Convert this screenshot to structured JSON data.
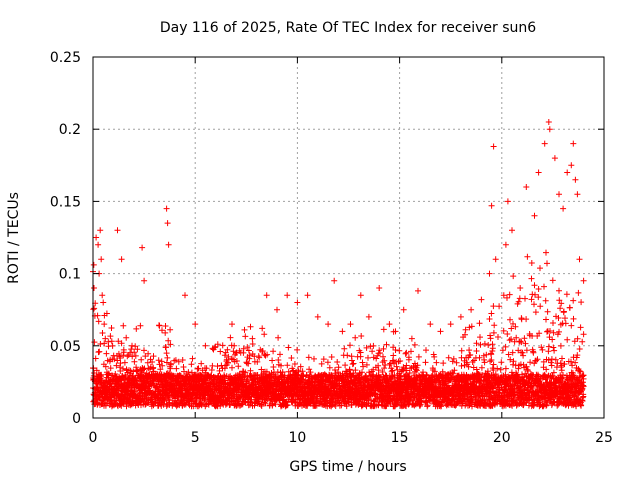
{
  "chart_data": {
    "type": "scatter",
    "title": "Day 116 of 2025, Rate Of TEC Index for receiver sun6",
    "xlabel": "GPS time / hours",
    "ylabel": "ROTI / TECUs",
    "xlim": [
      0,
      25
    ],
    "ylim": [
      0,
      0.25
    ],
    "xticks": [
      0,
      5,
      10,
      15,
      20,
      25
    ],
    "xtick_labels": [
      "0",
      "5",
      "10",
      "15",
      "20",
      "25"
    ],
    "yticks": [
      0,
      0.05,
      0.1,
      0.15,
      0.2,
      0.25
    ],
    "ytick_labels": [
      "0",
      "0.05",
      "0.1",
      "0.15",
      "0.2",
      "0.25"
    ],
    "grid": true,
    "marker": "+",
    "series": [
      {
        "name": "ROTI",
        "color": "#ff0000",
        "x": [
          0.05,
          0.15,
          0.25,
          0.3,
          0.35,
          0.4,
          0.45,
          0.5,
          0.55,
          0.6,
          1.2,
          1.4,
          2.4,
          2.5,
          3.6,
          3.65,
          3.7,
          4.5,
          5.0,
          5.5,
          6.8,
          7.0,
          7.8,
          8.5,
          9.0,
          9.5,
          10.0,
          10.5,
          11.0,
          11.5,
          11.8,
          12.2,
          12.6,
          13.1,
          13.5,
          14.0,
          14.5,
          14.8,
          15.2,
          15.6,
          15.9,
          16.5,
          17.0,
          17.5,
          18.0,
          18.5,
          19.0,
          19.4,
          19.5,
          19.6,
          19.7,
          20.1,
          20.2,
          20.3,
          20.5,
          20.9,
          21.2,
          21.6,
          21.8,
          22.1,
          22.3,
          22.35,
          22.6,
          22.8,
          23.0,
          23.2,
          23.4,
          23.5,
          23.6,
          23.7,
          23.8,
          24.0
        ],
        "y": [
          0.09,
          0.125,
          0.12,
          0.1,
          0.13,
          0.11,
          0.085,
          0.08,
          0.065,
          0.055,
          0.13,
          0.11,
          0.118,
          0.095,
          0.145,
          0.135,
          0.12,
          0.085,
          0.065,
          0.05,
          0.065,
          0.045,
          0.055,
          0.085,
          0.075,
          0.085,
          0.08,
          0.085,
          0.07,
          0.065,
          0.095,
          0.06,
          0.065,
          0.085,
          0.07,
          0.09,
          0.065,
          0.06,
          0.075,
          0.055,
          0.088,
          0.065,
          0.06,
          0.065,
          0.07,
          0.075,
          0.082,
          0.1,
          0.147,
          0.188,
          0.11,
          0.085,
          0.12,
          0.15,
          0.13,
          0.09,
          0.16,
          0.14,
          0.17,
          0.19,
          0.205,
          0.2,
          0.18,
          0.155,
          0.145,
          0.17,
          0.175,
          0.19,
          0.165,
          0.155,
          0.11,
          0.095
        ]
      }
    ]
  }
}
